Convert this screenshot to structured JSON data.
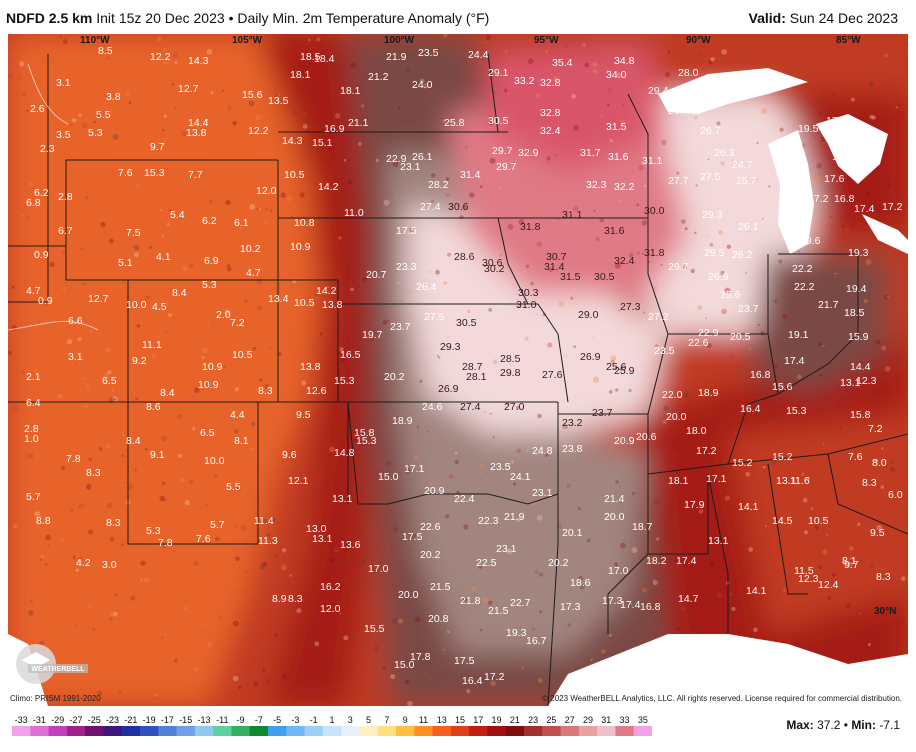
{
  "header": {
    "model": "NDFD 2.5 km",
    "init": "Init 15z 20 Dec 2023",
    "separator": "•",
    "product": "Daily Min. 2m Temperature Anomaly (°F)",
    "valid_label": "Valid:",
    "valid_value": "Sun 24 Dec 2023"
  },
  "map": {
    "longitudes": [
      "110°W",
      "105°W",
      "100°W",
      "95°W",
      "90°W",
      "85°W"
    ],
    "latitude_label": "30°N",
    "colors": {
      "deep_red": "#8a0d12",
      "red": "#c13a20",
      "orange": "#e8632a",
      "brown": "#7a4a44",
      "gray_brown": "#a38580",
      "light_pink": "#f3d9da",
      "pink": "#e07a86",
      "rose": "#d9576b",
      "lake": "#ffffff"
    },
    "values": [
      "8.5",
      "12.2",
      "14.3",
      "18.5",
      "18.4",
      "21.9",
      "23.5",
      "24.4",
      "35.4",
      "34.8",
      "28.0",
      "3.1",
      "3.8",
      "12.7",
      "15.6",
      "13.5",
      "18.1",
      "18.1",
      "21.2",
      "24.0",
      "29.1",
      "33.2",
      "32.8",
      "34.0",
      "29.4",
      "2.6",
      "5.5",
      "14.4",
      "13.8",
      "12.2",
      "14.3",
      "15.1",
      "16.9",
      "21.1",
      "25.8",
      "30.5",
      "32.8",
      "32.4",
      "31.5",
      "26.7",
      "26.7",
      "19.5",
      "17.9",
      "3.5",
      "5.3",
      "2.3",
      "9.7",
      "22.9",
      "26.1",
      "29.7",
      "32.9",
      "31.7",
      "31.6",
      "31.1",
      "26.3",
      "24.7",
      "16.3",
      "7.6",
      "15.3",
      "7.7",
      "12.0",
      "10.5",
      "14.2",
      "23.1",
      "28.2",
      "31.4",
      "29.7",
      "32.3",
      "32.2",
      "27.7",
      "27.5",
      "25.7",
      "17.6",
      "6.2",
      "2.8",
      "6.8",
      "5.4",
      "6.2",
      "6.1",
      "10.8",
      "11.0",
      "27.4",
      "30.6",
      "31.8",
      "31.1",
      "30.0",
      "29.3",
      "17.2",
      "16.8",
      "17.4",
      "17.2",
      "6.7",
      "7.5",
      "10.2",
      "10.9",
      "17.5",
      "28.6",
      "30.6",
      "30.2",
      "30.7",
      "31.4",
      "31.6",
      "32.4",
      "31.8",
      "29.7",
      "29.5",
      "26.2",
      "26.1",
      "19.6",
      "19.3",
      "5.5",
      "0.9",
      "5.1",
      "4.1",
      "6.9",
      "4.7",
      "20.7",
      "23.3",
      "26.4",
      "30.3",
      "31.5",
      "30.5",
      "26.9",
      "22.2",
      "22.2",
      "19.4",
      "4.7",
      "0.9",
      "12.7",
      "10.0",
      "4.5",
      "8.4",
      "5.3",
      "13.4",
      "10.5",
      "14.2",
      "13.8",
      "27.5",
      "31.0",
      "29.0",
      "27.3",
      "25.6",
      "27.2",
      "23.7",
      "21.7",
      "18.5",
      "6.6",
      "2.0",
      "7.2",
      "23.7",
      "30.5",
      "19.7",
      "29.3",
      "22.9",
      "22.6",
      "20.5",
      "19.1",
      "15.9",
      "11.1",
      "3.1",
      "9.2",
      "10.9",
      "10.5",
      "13.8",
      "16.5",
      "28.5",
      "28.7",
      "28.1",
      "29.8",
      "27.6",
      "26.9",
      "25.6",
      "25.9",
      "23.5",
      "17.4",
      "14.4",
      "2.1",
      "6.5",
      "8.4",
      "10.9",
      "8.3",
      "12.6",
      "15.3",
      "20.2",
      "26.9",
      "24.6",
      "27.4",
      "27.0",
      "22.0",
      "18.9",
      "16.8",
      "15.6",
      "13.1",
      "12.3",
      "6.4",
      "8.6",
      "4.4",
      "9.5",
      "15.8",
      "15.3",
      "18.9",
      "23.7",
      "20.0",
      "16.4",
      "15.3",
      "15.8",
      "2.8",
      "1.0",
      "8.4",
      "6.5",
      "8.1",
      "14.8",
      "23.2",
      "20.9",
      "20.6",
      "18.0",
      "7.2",
      "7.8",
      "9.1",
      "10.0",
      "9.6",
      "17.1",
      "24.8",
      "23.8",
      "17.2",
      "15.2",
      "15.2",
      "7.6",
      "8.0",
      "8.3",
      "5.5",
      "12.1",
      "15.0",
      "23.5",
      "24.1",
      "18.1",
      "17.1",
      "13.1",
      "11.6",
      "8.3",
      "6.0",
      "5.7",
      "13.1",
      "20.9",
      "22.4",
      "23.1",
      "21.4",
      "17.9",
      "14.1",
      "9.5",
      "8.8",
      "8.3",
      "5.7",
      "11.4",
      "13.0",
      "17.5",
      "22.6",
      "22.3",
      "21.9",
      "20.0",
      "18.7",
      "13.1",
      "14.5",
      "10.5",
      "5.3",
      "7.8",
      "7.6",
      "11.3",
      "13.1",
      "13.6",
      "20.2",
      "23.1",
      "20.1",
      "17.0",
      "4.2",
      "3.0",
      "17.0",
      "22.5",
      "20.2",
      "18.2",
      "17.4",
      "11.5",
      "12.3",
      "9.7",
      "8.1",
      "8.3",
      "16.2",
      "20.0",
      "21.5",
      "18.6",
      "14.1",
      "12.4",
      "8.9",
      "8.3",
      "12.0",
      "21.8",
      "21.5",
      "22.7",
      "17.3",
      "17.3",
      "17.4",
      "16.8",
      "14.7",
      "15.5",
      "20.8",
      "19.3",
      "16.7",
      "15.0",
      "17.8",
      "17.5",
      "16.4",
      "17.2"
    ]
  },
  "footer": {
    "climo": "Climo: PRISM 1991-2020",
    "copyright": "© 2023 WeatherBELL Analytics, LLC. All rights reserved. License required for commercial distribution.",
    "logo_text": "WEATHERBELL",
    "colorbar_ticks": [
      "-33",
      "-31",
      "-29",
      "-27",
      "-25",
      "-23",
      "-21",
      "-19",
      "-17",
      "-15",
      "-13",
      "-11",
      "-9",
      "-7",
      "-5",
      "-3",
      "-1",
      "1",
      "3",
      "5",
      "7",
      "9",
      "11",
      "13",
      "15",
      "17",
      "19",
      "21",
      "23",
      "25",
      "27",
      "29",
      "31",
      "33",
      "35"
    ],
    "max_label": "Max:",
    "max_value": "37.2",
    "min_label": "Min:",
    "min_value": "-7.1"
  }
}
